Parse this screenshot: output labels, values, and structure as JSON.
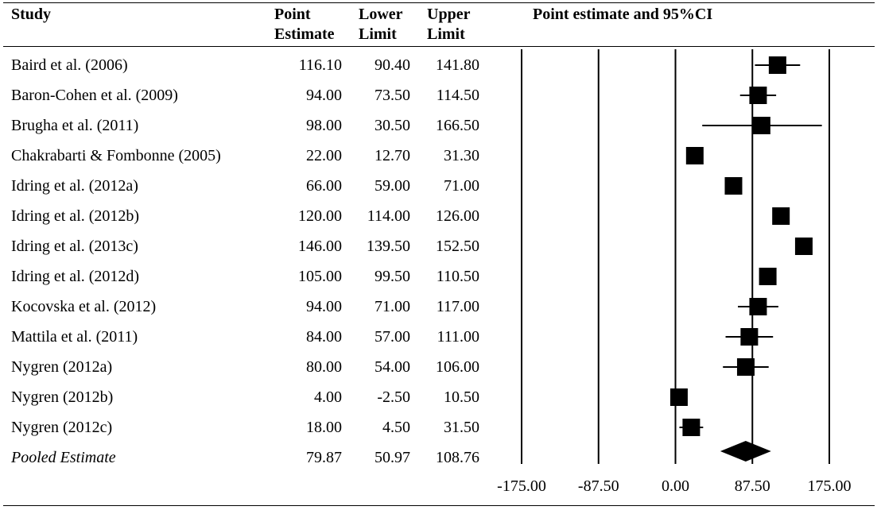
{
  "headers": {
    "study": "Study",
    "point": [
      "Point",
      "Estimate"
    ],
    "lower": [
      "Lower",
      "Limit"
    ],
    "upper": [
      "Upper",
      "Limit"
    ],
    "plot_title": "Point estimate and 95%CI"
  },
  "rows": [
    {
      "study": "Baird et al. (2006)",
      "point": "116.10",
      "lower": "90.40",
      "upper": "141.80"
    },
    {
      "study": "Baron-Cohen et al. (2009)",
      "point": "94.00",
      "lower": "73.50",
      "upper": "114.50"
    },
    {
      "study": "Brugha et al. (2011)",
      "point": "98.00",
      "lower": "30.50",
      "upper": "166.50"
    },
    {
      "study": "Chakrabarti & Fombonne (2005)",
      "point": "22.00",
      "lower": "12.70",
      "upper": "31.30"
    },
    {
      "study": "Idring et al. (2012a)",
      "point": "66.00",
      "lower": "59.00",
      "upper": "71.00"
    },
    {
      "study": "Idring et al. (2012b)",
      "point": "120.00",
      "lower": "114.00",
      "upper": "126.00"
    },
    {
      "study": "Idring et al. (2013c)",
      "point": "146.00",
      "lower": "139.50",
      "upper": "152.50"
    },
    {
      "study": "Idring et al. (2012d)",
      "point": "105.00",
      "lower": "99.50",
      "upper": "110.50"
    },
    {
      "study": "Kocovska et al. (2012)",
      "point": "94.00",
      "lower": "71.00",
      "upper": "117.00"
    },
    {
      "study": "Mattila et al. (2011)",
      "point": "84.00",
      "lower": "57.00",
      "upper": "111.00"
    },
    {
      "study": "Nygren (2012a)",
      "point": "80.00",
      "lower": "54.00",
      "upper": "106.00"
    },
    {
      "study": "Nygren (2012b)",
      "point": "4.00",
      "lower": "-2.50",
      "upper": "10.50"
    },
    {
      "study": "Nygren (2012c)",
      "point": "18.00",
      "lower": "4.50",
      "upper": "31.50"
    }
  ],
  "pooled": {
    "study": "Pooled Estimate",
    "point": "79.87",
    "lower": "50.97",
    "upper": "108.76"
  },
  "chart_data": {
    "type": "forest",
    "title": "Point estimate and 95%CI",
    "xlim": [
      -175,
      175
    ],
    "xticks": [
      "-175.00",
      "-87.50",
      "0.00",
      "87.50",
      "175.00"
    ],
    "xtick_values": [
      -175,
      -87.5,
      0,
      87.5,
      175
    ],
    "reference_lines": [
      -175,
      -87.5,
      0,
      87.5,
      175
    ],
    "studies": [
      {
        "name": "Baird et al. (2006)",
        "estimate": 116.1,
        "lower": 90.4,
        "upper": 141.8
      },
      {
        "name": "Baron-Cohen et al. (2009)",
        "estimate": 94.0,
        "lower": 73.5,
        "upper": 114.5
      },
      {
        "name": "Brugha et al. (2011)",
        "estimate": 98.0,
        "lower": 30.5,
        "upper": 166.5
      },
      {
        "name": "Chakrabarti & Fombonne (2005)",
        "estimate": 22.0,
        "lower": 12.7,
        "upper": 31.3
      },
      {
        "name": "Idring et al. (2012a)",
        "estimate": 66.0,
        "lower": 59.0,
        "upper": 71.0
      },
      {
        "name": "Idring et al. (2012b)",
        "estimate": 120.0,
        "lower": 114.0,
        "upper": 126.0
      },
      {
        "name": "Idring et al. (2013c)",
        "estimate": 146.0,
        "lower": 139.5,
        "upper": 152.5
      },
      {
        "name": "Idring et al. (2012d)",
        "estimate": 105.0,
        "lower": 99.5,
        "upper": 110.5
      },
      {
        "name": "Kocovska et al. (2012)",
        "estimate": 94.0,
        "lower": 71.0,
        "upper": 117.0
      },
      {
        "name": "Mattila et al. (2011)",
        "estimate": 84.0,
        "lower": 57.0,
        "upper": 111.0
      },
      {
        "name": "Nygren (2012a)",
        "estimate": 80.0,
        "lower": 54.0,
        "upper": 106.0
      },
      {
        "name": "Nygren (2012b)",
        "estimate": 4.0,
        "lower": -2.5,
        "upper": 10.5
      },
      {
        "name": "Nygren (2012c)",
        "estimate": 18.0,
        "lower": 4.5,
        "upper": 31.5
      }
    ],
    "pooled": {
      "name": "Pooled Estimate",
      "estimate": 79.87,
      "lower": 50.97,
      "upper": 108.76
    }
  }
}
